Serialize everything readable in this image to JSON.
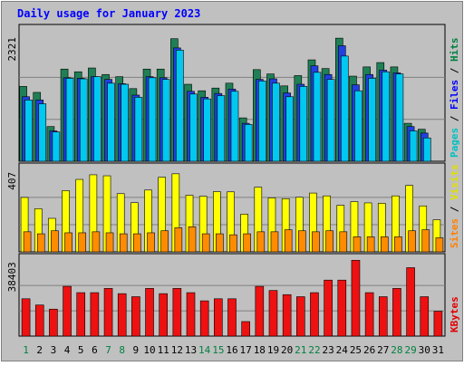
{
  "chart_data": {
    "type": "bar",
    "title": "Daily usage for January 2023",
    "categories": [
      "1",
      "2",
      "3",
      "4",
      "5",
      "6",
      "7",
      "8",
      "9",
      "10",
      "11",
      "12",
      "13",
      "14",
      "15",
      "16",
      "17",
      "18",
      "19",
      "20",
      "21",
      "22",
      "23",
      "24",
      "25",
      "26",
      "27",
      "28",
      "29",
      "30",
      "31"
    ],
    "weekend_days": [
      "1",
      "7",
      "8",
      "14",
      "15",
      "21",
      "22",
      "28",
      "29"
    ],
    "panels": [
      {
        "id": "hits",
        "max_label": "2321",
        "ymax": 2321,
        "right_label": [
          "Pages",
          "Files",
          "Hits"
        ],
        "right_label_colors": [
          "#00c0c0",
          "#0000ff",
          "#008040"
        ],
        "series": [
          {
            "name": "Hits",
            "color": "#1f8055",
            "values": [
              1380,
              1270,
              640,
              1700,
              1650,
              1720,
              1600,
              1560,
              1340,
              1700,
              1700,
              2260,
              1420,
              1300,
              1350,
              1440,
              800,
              1690,
              1610,
              1390,
              1580,
              1870,
              1710,
              2270,
              1570,
              1740,
              1820,
              1740,
              700,
              590,
              0
            ]
          },
          {
            "name": "Files",
            "color": "#2040e0",
            "values": [
              1190,
              1130,
              560,
              1540,
              1530,
              1560,
              1510,
              1430,
              1220,
              1560,
              1540,
              2090,
              1290,
              1180,
              1250,
              1330,
              700,
              1510,
              1520,
              1260,
              1420,
              1760,
              1600,
              2130,
              1410,
              1600,
              1680,
              1630,
              640,
              520,
              0
            ]
          },
          {
            "name": "Pages",
            "color": "#00c8f0",
            "values": [
              1130,
              1060,
              540,
              1530,
              1520,
              1560,
              1440,
              1420,
              1180,
              1540,
              1510,
              2050,
              1240,
              1150,
              1210,
              1290,
              680,
              1480,
              1440,
              1190,
              1380,
              1640,
              1510,
              1940,
              1300,
              1530,
              1650,
              1610,
              560,
              430,
              0
            ]
          }
        ]
      },
      {
        "id": "visits",
        "max_label": "407",
        "ymax": 407,
        "right_label": [
          "Sites",
          "Visits"
        ],
        "right_label_colors": [
          "#ff8000",
          "#e0e000"
        ],
        "series": [
          {
            "name": "Visits",
            "color": "#ffff00",
            "values": [
              271,
              215,
              167,
              305,
              361,
              384,
              379,
              290,
              245,
              308,
              372,
              389,
              282,
              277,
              300,
              299,
              188,
              322,
              269,
              265,
              272,
              293,
              279,
              232,
              250,
              244,
              242,
              279,
              331,
              229,
              160
            ]
          },
          {
            "name": "Sites",
            "color": "#ff8c00",
            "values": [
              100,
              90,
              105,
              95,
              95,
              100,
              95,
              90,
              90,
              95,
              105,
              120,
              125,
              90,
              90,
              85,
              90,
              100,
              100,
              110,
              105,
              100,
              105,
              100,
              75,
              75,
              75,
              75,
              105,
              110,
              70
            ]
          }
        ]
      },
      {
        "id": "kbytes",
        "max_label": "38403",
        "ymax": 38403,
        "right_label": [
          "KBytes"
        ],
        "right_label_colors": [
          "#e00000"
        ],
        "series": [
          {
            "name": "KBytes",
            "color": "#ee1111",
            "values": [
              18900,
              15750,
              13650,
              25200,
              22000,
              22000,
              24150,
              21500,
              19950,
              24150,
              21500,
              24150,
              22000,
              17850,
              18900,
              18900,
              7350,
              25200,
              23100,
              21000,
              19950,
              22000,
              28350,
              28350,
              38403,
              22000,
              19950,
              24150,
              34650,
              19950,
              12600
            ]
          }
        ]
      }
    ]
  }
}
